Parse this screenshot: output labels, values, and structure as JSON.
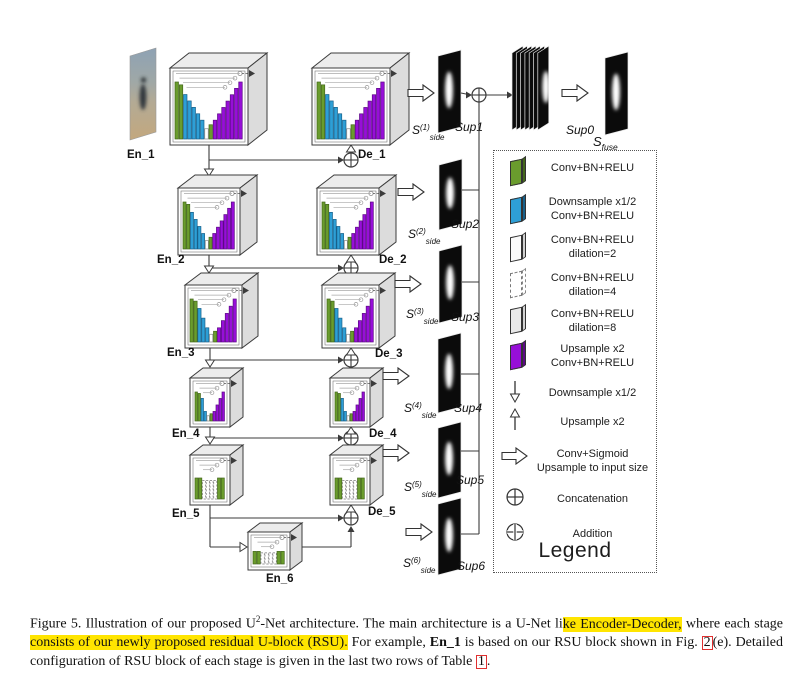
{
  "colors": {
    "green": "#6a9c2d",
    "green_dark": "#44671c",
    "blue": "#2e9fd6",
    "blue_dark": "#17608a",
    "purple": "#970fd8",
    "purple_dark": "#5c0a85",
    "box_top": "#ececec",
    "box_side": "#dcdcdc",
    "line": "#3b3b3b",
    "map_black": "#0b0b0b",
    "highlight": "#ffe500",
    "ref_red": "#e03030"
  },
  "diagram": {
    "blocks": [
      {
        "id": "en1",
        "label": "En_1"
      },
      {
        "id": "de1",
        "label": "De_1"
      },
      {
        "id": "en2",
        "label": "En_2"
      },
      {
        "id": "de2",
        "label": "De_2"
      },
      {
        "id": "en3",
        "label": "En_3"
      },
      {
        "id": "de3",
        "label": "De_3"
      },
      {
        "id": "en4",
        "label": "En_4"
      },
      {
        "id": "de4",
        "label": "De_4"
      },
      {
        "id": "en5",
        "label": "En_5"
      },
      {
        "id": "de5",
        "label": "De_5"
      },
      {
        "id": "en6",
        "label": "En_6"
      }
    ],
    "side_outputs": [
      {
        "s": "S",
        "exp": "(1)",
        "sub": "side",
        "sup_label": "Sup1"
      },
      {
        "s": "S",
        "exp": "(2)",
        "sub": "side",
        "sup_label": "Sup2"
      },
      {
        "s": "S",
        "exp": "(3)",
        "sub": "side",
        "sup_label": "Sup3"
      },
      {
        "s": "S",
        "exp": "(4)",
        "sub": "side",
        "sup_label": "Sup4"
      },
      {
        "s": "S",
        "exp": "(5)",
        "sub": "side",
        "sup_label": "Sup5"
      },
      {
        "s": "S",
        "exp": "(6)",
        "sub": "side",
        "sup_label": "Sup6"
      }
    ],
    "fusion": {
      "sup0_label": "Sup0",
      "sfuse_s": "S",
      "sfuse_sub": "fuse"
    }
  },
  "legend": {
    "title": "Legend",
    "items": [
      {
        "icon": "conv-block",
        "lines": [
          "Conv+BN+RELU"
        ]
      },
      {
        "icon": "downsample-conv-block",
        "lines": [
          "Downsample x1/2",
          "Conv+BN+RELU"
        ]
      },
      {
        "icon": "dilation2-block",
        "lines": [
          "Conv+BN+RELU",
          "dilation=2"
        ]
      },
      {
        "icon": "dilation4-block",
        "lines": [
          "Conv+BN+RELU",
          "dilation=4"
        ]
      },
      {
        "icon": "dilation8-block",
        "lines": [
          "Conv+BN+RELU",
          "dilation=8"
        ]
      },
      {
        "icon": "upsample-conv-block",
        "lines": [
          "Upsample x2",
          "Conv+BN+RELU"
        ]
      },
      {
        "icon": "downsample-arrow",
        "lines": [
          "Downsample x1/2"
        ]
      },
      {
        "icon": "upsample-arrow",
        "lines": [
          "Upsample x2"
        ]
      },
      {
        "icon": "conv-sigmoid-arrow",
        "lines": [
          "Conv+Sigmoid",
          "Upsample to input size"
        ]
      },
      {
        "icon": "concatenation-symbol",
        "lines": [
          "Concatenation"
        ]
      },
      {
        "icon": "addition-symbol",
        "lines": [
          "Addition"
        ]
      }
    ]
  },
  "caption": {
    "part1": "Figure 5.  Illustration of our proposed U",
    "sup": "2",
    "part2": "-Net architecture. The main architecture is a U-Net li",
    "hl1": "ke Encoder-Decoder,",
    "part3": " where each stage ",
    "hl2": "consists of our newly proposed residual U-block (RSU).",
    "part4": " For example, ",
    "bold1": "En_1",
    "part5": " is based on our RSU block shown in Fig. ",
    "ref1": "2",
    "part6": "(e). Detailed configuration of RSU block of each stage is given in the last two rows of Table ",
    "ref2": "1",
    "part7": "."
  }
}
